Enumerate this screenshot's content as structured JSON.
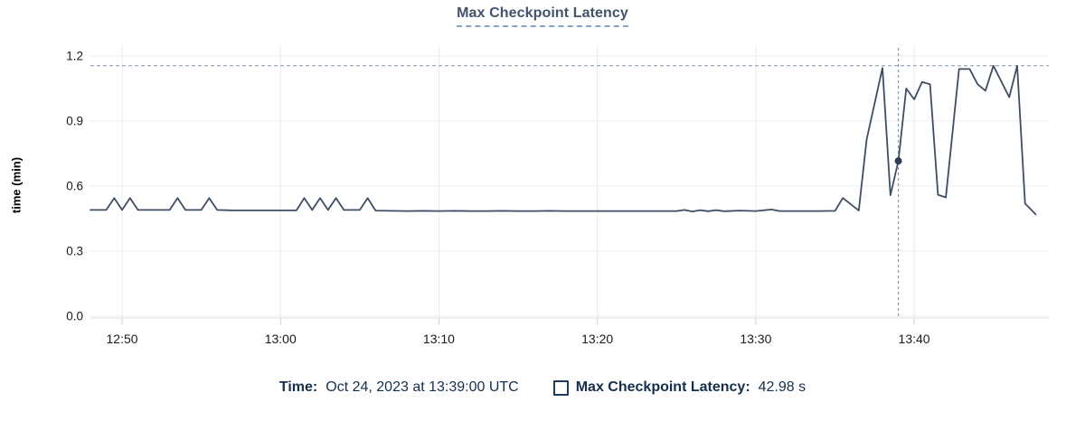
{
  "chart_data": {
    "type": "line",
    "title": "Max Checkpoint Latency",
    "ylabel": "time (min)",
    "ylim": [
      0,
      1.2
    ],
    "yticks": [
      0.0,
      0.3,
      0.6,
      0.9,
      1.2
    ],
    "x_range": [
      "12:48:00",
      "13:48:30"
    ],
    "xticks": [
      "12:50",
      "13:00",
      "13:10",
      "13:20",
      "13:30",
      "13:40"
    ],
    "grid": true,
    "legend_position": "bottom",
    "threshold_line_value": 1.155,
    "cursor": {
      "time": "13:39:00",
      "value_min": 0.716
    },
    "series": [
      {
        "name": "Max Checkpoint Latency",
        "unit": "s",
        "points": [
          [
            "12:48:00",
            0.49
          ],
          [
            "12:49:00",
            0.49
          ],
          [
            "12:49:30",
            0.545
          ],
          [
            "12:50:00",
            0.49
          ],
          [
            "12:50:30",
            0.545
          ],
          [
            "12:51:00",
            0.49
          ],
          [
            "12:52:00",
            0.49
          ],
          [
            "12:53:00",
            0.49
          ],
          [
            "12:53:30",
            0.545
          ],
          [
            "12:54:00",
            0.49
          ],
          [
            "12:55:00",
            0.49
          ],
          [
            "12:55:30",
            0.545
          ],
          [
            "12:56:00",
            0.49
          ],
          [
            "12:57:00",
            0.488
          ],
          [
            "12:58:00",
            0.488
          ],
          [
            "12:59:00",
            0.488
          ],
          [
            "13:00:00",
            0.488
          ],
          [
            "13:01:00",
            0.488
          ],
          [
            "13:01:30",
            0.545
          ],
          [
            "13:02:00",
            0.49
          ],
          [
            "13:02:30",
            0.545
          ],
          [
            "13:03:00",
            0.49
          ],
          [
            "13:03:30",
            0.545
          ],
          [
            "13:04:00",
            0.49
          ],
          [
            "13:05:00",
            0.49
          ],
          [
            "13:05:30",
            0.545
          ],
          [
            "13:06:00",
            0.487
          ],
          [
            "13:07:00",
            0.486
          ],
          [
            "13:08:00",
            0.485
          ],
          [
            "13:09:00",
            0.486
          ],
          [
            "13:10:00",
            0.485
          ],
          [
            "13:11:00",
            0.486
          ],
          [
            "13:12:00",
            0.485
          ],
          [
            "13:13:00",
            0.485
          ],
          [
            "13:14:00",
            0.486
          ],
          [
            "13:15:00",
            0.485
          ],
          [
            "13:16:00",
            0.485
          ],
          [
            "13:17:00",
            0.486
          ],
          [
            "13:18:00",
            0.485
          ],
          [
            "13:19:00",
            0.485
          ],
          [
            "13:20:00",
            0.485
          ],
          [
            "13:21:00",
            0.485
          ],
          [
            "13:22:00",
            0.485
          ],
          [
            "13:23:00",
            0.485
          ],
          [
            "13:24:00",
            0.485
          ],
          [
            "13:25:00",
            0.485
          ],
          [
            "13:25:30",
            0.49
          ],
          [
            "13:26:00",
            0.483
          ],
          [
            "13:26:30",
            0.489
          ],
          [
            "13:27:00",
            0.484
          ],
          [
            "13:27:30",
            0.489
          ],
          [
            "13:28:00",
            0.484
          ],
          [
            "13:29:00",
            0.487
          ],
          [
            "13:30:00",
            0.485
          ],
          [
            "13:31:00",
            0.492
          ],
          [
            "13:31:30",
            0.485
          ],
          [
            "13:32:00",
            0.485
          ],
          [
            "13:33:00",
            0.485
          ],
          [
            "13:34:00",
            0.485
          ],
          [
            "13:35:00",
            0.486
          ],
          [
            "13:35:30",
            0.545
          ],
          [
            "13:36:30",
            0.487
          ],
          [
            "13:37:00",
            0.815
          ],
          [
            "13:38:00",
            1.145
          ],
          [
            "13:38:30",
            0.558
          ],
          [
            "13:39:00",
            0.716
          ],
          [
            "13:39:30",
            1.05
          ],
          [
            "13:40:00",
            1.0
          ],
          [
            "13:40:30",
            1.08
          ],
          [
            "13:41:00",
            1.07
          ],
          [
            "13:41:30",
            0.56
          ],
          [
            "13:42:00",
            0.548
          ],
          [
            "13:42:50",
            1.14
          ],
          [
            "13:43:30",
            1.14
          ],
          [
            "13:44:00",
            1.07
          ],
          [
            "13:44:30",
            1.04
          ],
          [
            "13:45:00",
            1.155
          ],
          [
            "13:46:00",
            1.01
          ],
          [
            "13:46:30",
            1.155
          ],
          [
            "13:47:00",
            0.52
          ],
          [
            "13:47:40",
            0.47
          ]
        ]
      }
    ],
    "colors": {
      "line": "#3f4d63",
      "dot": "#2b3d56",
      "annotation": "#8096ab",
      "grid": "#ececec",
      "axis": "#e2e2e2",
      "tick": "#cfcfcf",
      "tick_text": "#1a1a1a"
    }
  },
  "legend": {
    "time_label": "Time:",
    "time_value": "Oct 24, 2023 at 13:39:00 UTC",
    "series_label": "Max Checkpoint Latency:",
    "series_value": "42.98 s"
  }
}
